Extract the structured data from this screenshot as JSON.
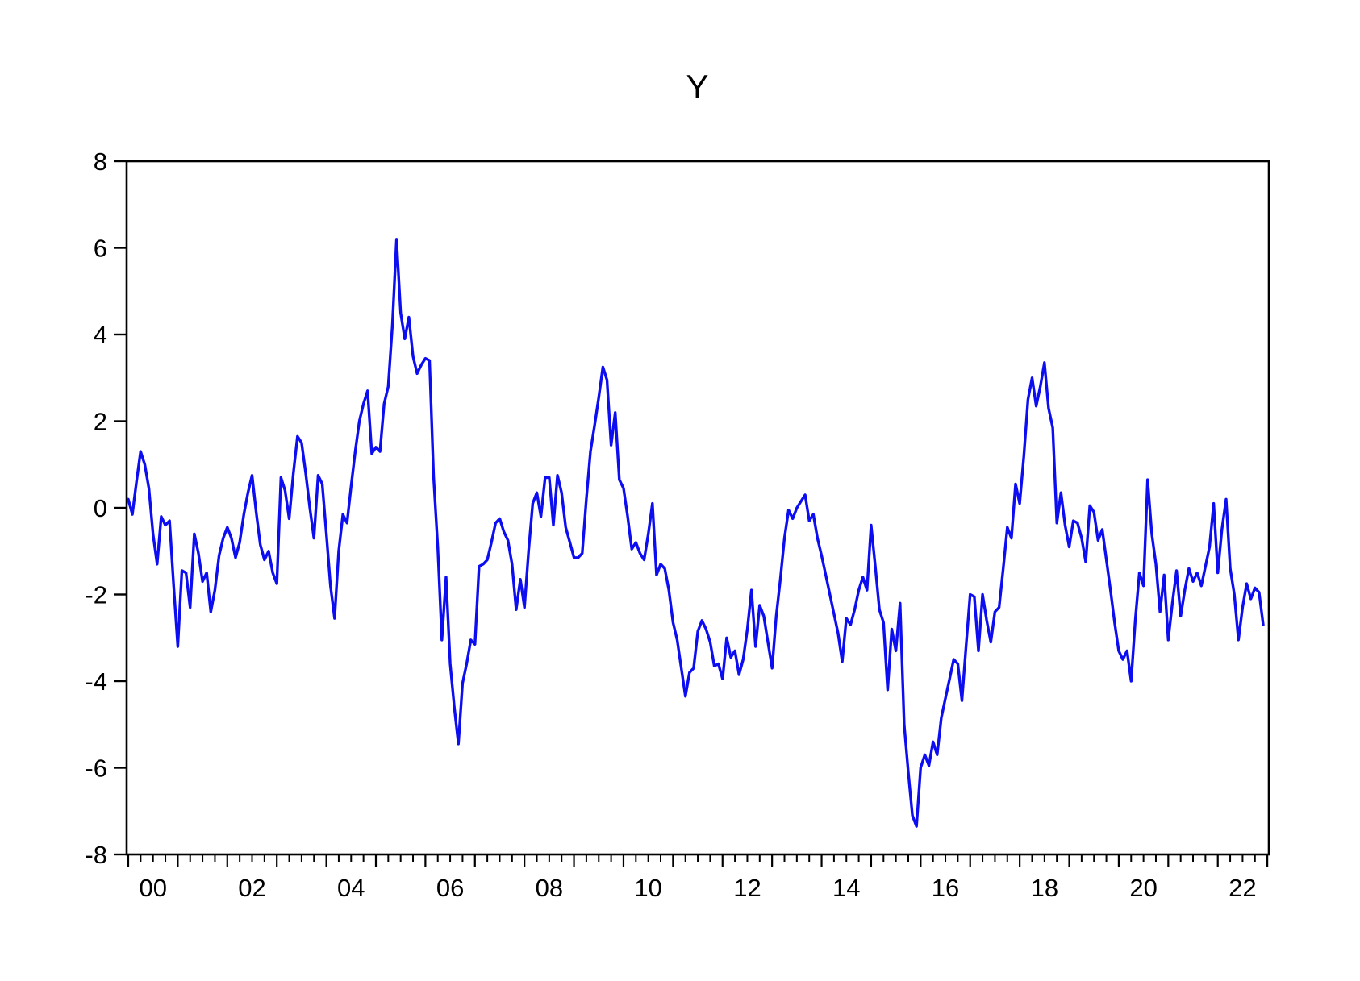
{
  "title": "Y",
  "chart_data": {
    "type": "line",
    "title": "Y",
    "xlabel": "",
    "ylabel": "",
    "frequency": "monthly",
    "x_start": "2000M01",
    "x_end": "2022M12",
    "x_years": 23,
    "ylim": [
      -8,
      8
    ],
    "y_tick_step": 2,
    "grid": "off",
    "legend": "none",
    "frame": "box",
    "axis_color": "#000000",
    "x_tick_labels": [
      "00",
      "02",
      "04",
      "06",
      "08",
      "10",
      "12",
      "14",
      "16",
      "18",
      "20",
      "22"
    ],
    "y_tick_labels": [
      "8",
      "6",
      "4",
      "2",
      "0",
      "-2",
      "-4",
      "-6",
      "-8"
    ],
    "series": [
      {
        "name": "Y",
        "color": "#0d0df2",
        "values": [
          0.2,
          -0.15,
          0.6,
          1.3,
          1.0,
          0.45,
          -0.6,
          -1.3,
          -0.2,
          -0.4,
          -0.3,
          -1.8,
          -3.2,
          -1.45,
          -1.5,
          -2.3,
          -0.6,
          -1.05,
          -1.7,
          -1.5,
          -2.4,
          -1.9,
          -1.1,
          -0.7,
          -0.45,
          -0.7,
          -1.15,
          -0.8,
          -0.15,
          0.35,
          0.75,
          -0.1,
          -0.85,
          -1.2,
          -1.0,
          -1.5,
          -1.75,
          0.7,
          0.4,
          -0.25,
          0.8,
          1.65,
          1.5,
          0.8,
          0.0,
          -0.7,
          0.75,
          0.55,
          -0.6,
          -1.8,
          -2.55,
          -1.0,
          -0.15,
          -0.35,
          0.5,
          1.3,
          2.0,
          2.4,
          2.7,
          1.25,
          1.4,
          1.3,
          2.4,
          2.8,
          4.2,
          6.2,
          4.5,
          3.9,
          4.4,
          3.5,
          3.1,
          3.3,
          3.45,
          3.4,
          0.7,
          -0.9,
          -3.05,
          -1.6,
          -3.6,
          -4.6,
          -5.45,
          -4.05,
          -3.6,
          -3.05,
          -3.15,
          -1.35,
          -1.3,
          -1.2,
          -0.8,
          -0.35,
          -0.25,
          -0.55,
          -0.75,
          -1.3,
          -2.35,
          -1.65,
          -2.3,
          -1.0,
          0.1,
          0.35,
          -0.2,
          0.7,
          0.7,
          -0.4,
          0.75,
          0.35,
          -0.45,
          -0.8,
          -1.15,
          -1.15,
          -1.05,
          0.2,
          1.3,
          1.9,
          2.55,
          3.25,
          2.95,
          1.45,
          2.2,
          0.65,
          0.45,
          -0.2,
          -0.95,
          -0.8,
          -1.05,
          -1.2,
          -0.6,
          0.1,
          -1.55,
          -1.3,
          -1.4,
          -1.9,
          -2.65,
          -3.05,
          -3.7,
          -4.35,
          -3.8,
          -3.7,
          -2.85,
          -2.6,
          -2.8,
          -3.1,
          -3.65,
          -3.6,
          -3.95,
          -3.0,
          -3.45,
          -3.3,
          -3.85,
          -3.5,
          -2.8,
          -1.9,
          -3.2,
          -2.25,
          -2.5,
          -3.1,
          -3.7,
          -2.5,
          -1.65,
          -0.7,
          -0.05,
          -0.25,
          0.0,
          0.15,
          0.3,
          -0.3,
          -0.15,
          -0.7,
          -1.1,
          -1.55,
          -2.0,
          -2.45,
          -2.9,
          -3.55,
          -2.55,
          -2.7,
          -2.35,
          -1.9,
          -1.6,
          -1.9,
          -0.4,
          -1.35,
          -2.35,
          -2.65,
          -4.2,
          -2.8,
          -3.3,
          -2.2,
          -5.0,
          -6.1,
          -7.1,
          -7.35,
          -6.0,
          -5.7,
          -5.95,
          -5.4,
          -5.7,
          -4.85,
          -4.4,
          -3.95,
          -3.5,
          -3.6,
          -4.45,
          -3.2,
          -2.0,
          -2.05,
          -3.3,
          -2.0,
          -2.6,
          -3.1,
          -2.4,
          -2.3,
          -1.4,
          -0.45,
          -0.7,
          0.55,
          0.1,
          1.2,
          2.5,
          3.0,
          2.35,
          2.8,
          3.35,
          2.3,
          1.85,
          -0.35,
          0.35,
          -0.4,
          -0.9,
          -0.3,
          -0.35,
          -0.7,
          -1.25,
          0.05,
          -0.1,
          -0.75,
          -0.5,
          -1.2,
          -1.9,
          -2.65,
          -3.3,
          -3.5,
          -3.3,
          -4.0,
          -2.6,
          -1.5,
          -1.8,
          0.65,
          -0.6,
          -1.3,
          -2.4,
          -1.55,
          -3.05,
          -2.2,
          -1.45,
          -2.5,
          -1.9,
          -1.4,
          -1.7,
          -1.5,
          -1.8,
          -1.35,
          -0.9,
          0.1,
          -1.5,
          -0.5,
          0.2,
          -1.4,
          -2.0,
          -3.05,
          -2.3,
          -1.75,
          -2.1,
          -1.85,
          -1.95,
          -2.7
        ]
      }
    ]
  }
}
